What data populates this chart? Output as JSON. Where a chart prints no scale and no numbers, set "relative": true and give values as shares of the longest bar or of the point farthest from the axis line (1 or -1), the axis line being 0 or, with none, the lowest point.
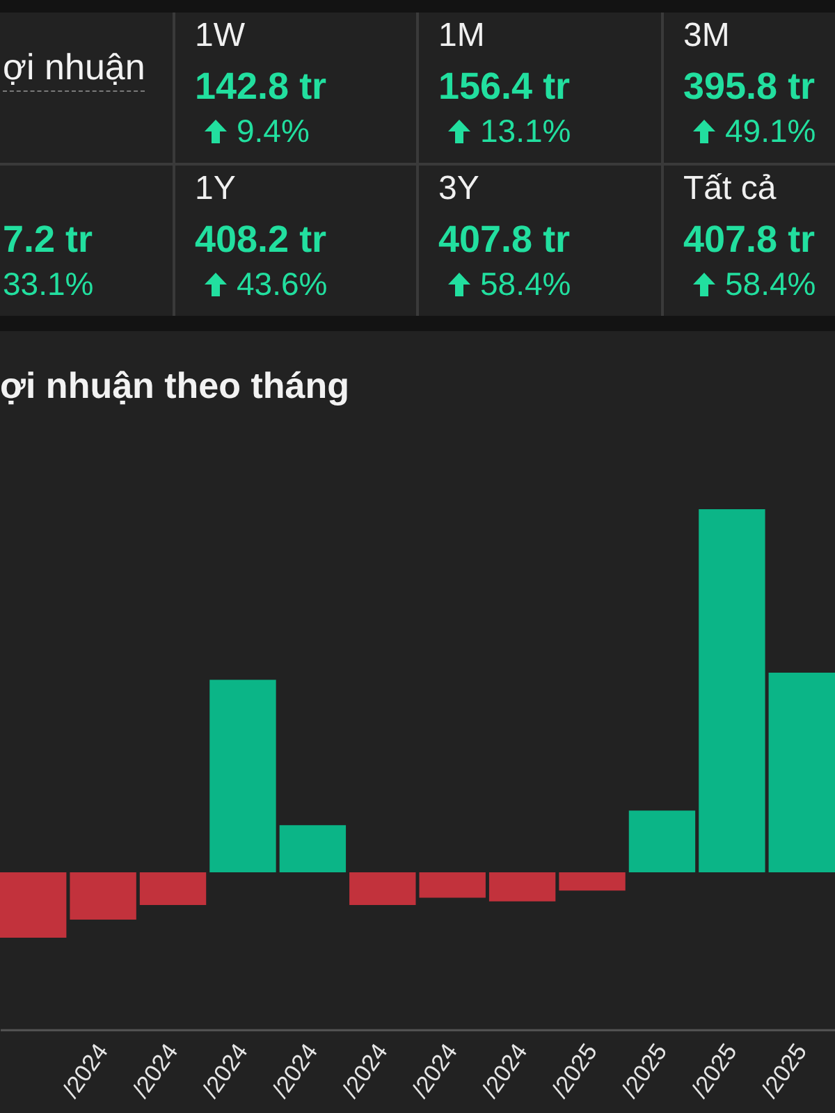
{
  "chart_data": [
    {
      "type": "other",
      "title": "ợi nhuận",
      "annotations": [
        "1W",
        "142.8 tr",
        "9.4%",
        "1M",
        "156.4 tr",
        "13.1%",
        "3M",
        "395.8 tr",
        "49.1%",
        "7.2 tr",
        "33.1%",
        "1Y",
        "408.2 tr",
        "43.6%",
        "3Y",
        "407.8 tr",
        "58.4%",
        "Tất cả",
        "407.8 tr",
        "58.4%"
      ]
    },
    {
      "type": "bar",
      "title": "ợi nhuận theo tháng",
      "relative": true,
      "categories": [
        null,
        "/2024",
        "/2024",
        "/2024",
        "/2024",
        "/2024",
        "/2024",
        "/2024",
        "/2025",
        "/2025",
        "/2025",
        "/2025"
      ],
      "values": [
        -0.18,
        -0.13,
        -0.09,
        0.53,
        0.13,
        -0.09,
        -0.07,
        -0.08,
        -0.05,
        0.17,
        1,
        0.55
      ],
      "colors": [
        "#c2323c",
        "#c2323c",
        "#c2323c",
        "#0bb587",
        "#0bb587",
        "#c2323c",
        "#c2323c",
        "#c2323c",
        "#c2323c",
        "#0bb587",
        "#0bb587",
        "#0bb587"
      ]
    }
  ]
}
